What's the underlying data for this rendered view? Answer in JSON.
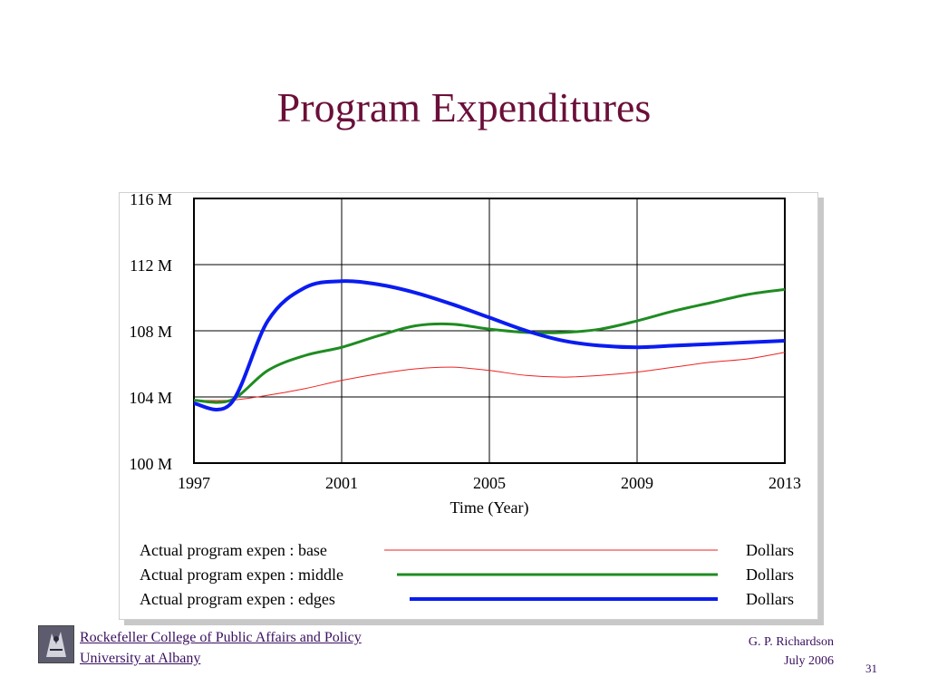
{
  "slide": {
    "title": "Program Expenditures",
    "college_line1": "Rockefeller College of Public Affairs and Policy",
    "college_line2": "University at Albany",
    "author": "G. P. Richardson",
    "date": "July 2006",
    "page": "31",
    "logo_icon": "college-seal-icon",
    "title_color": "#6b0f3a",
    "footer_color": "#3a1060"
  },
  "chart_data": {
    "type": "line",
    "title": "",
    "xlabel": "Time (Year)",
    "ylabel": "",
    "xlim": [
      1997,
      2013
    ],
    "ylim": [
      100,
      116
    ],
    "x_ticks": [
      1997,
      2001,
      2005,
      2009,
      2013
    ],
    "x_tick_labels": [
      "1997",
      "2001",
      "2005",
      "2009",
      "2013"
    ],
    "y_ticks": [
      100,
      104,
      108,
      112,
      116
    ],
    "y_tick_labels": [
      "100 M",
      "104 M",
      "108 M",
      "112 M",
      "116 M"
    ],
    "grid": true,
    "legend_position": "bottom",
    "series": [
      {
        "name": "Actual program expen : base",
        "units": "Dollars",
        "color": "#ee2222",
        "width": 1,
        "x": [
          1997,
          1998,
          1999,
          2000,
          2001,
          2002,
          2003,
          2004,
          2005,
          2006,
          2007,
          2008,
          2009,
          2010,
          2011,
          2012,
          2013
        ],
        "values": [
          103.8,
          103.8,
          104.1,
          104.5,
          105.0,
          105.4,
          105.7,
          105.8,
          105.6,
          105.3,
          105.2,
          105.3,
          105.5,
          105.8,
          106.1,
          106.3,
          106.7
        ]
      },
      {
        "name": "Actual program expen : middle",
        "units": "Dollars",
        "color": "#1f8c22",
        "width": 3,
        "x": [
          1997,
          1998,
          1999,
          2000,
          2001,
          2002,
          2003,
          2004,
          2005,
          2006,
          2007,
          2008,
          2009,
          2010,
          2011,
          2012,
          2013
        ],
        "values": [
          103.8,
          103.8,
          105.6,
          106.5,
          107.0,
          107.7,
          108.3,
          108.4,
          108.1,
          107.9,
          107.9,
          108.1,
          108.6,
          109.2,
          109.7,
          110.2,
          110.5
        ]
      },
      {
        "name": "Actual program expen : edges",
        "units": "Dollars",
        "color": "#0a1cf0",
        "width": 4,
        "x": [
          1997,
          1998,
          1999,
          2000,
          2001,
          2002,
          2003,
          2004,
          2005,
          2006,
          2007,
          2008,
          2009,
          2010,
          2011,
          2012,
          2013
        ],
        "values": [
          103.6,
          103.6,
          108.6,
          110.6,
          111.0,
          110.8,
          110.3,
          109.6,
          108.8,
          108.0,
          107.4,
          107.1,
          107.0,
          107.1,
          107.2,
          107.3,
          107.4
        ]
      }
    ]
  }
}
